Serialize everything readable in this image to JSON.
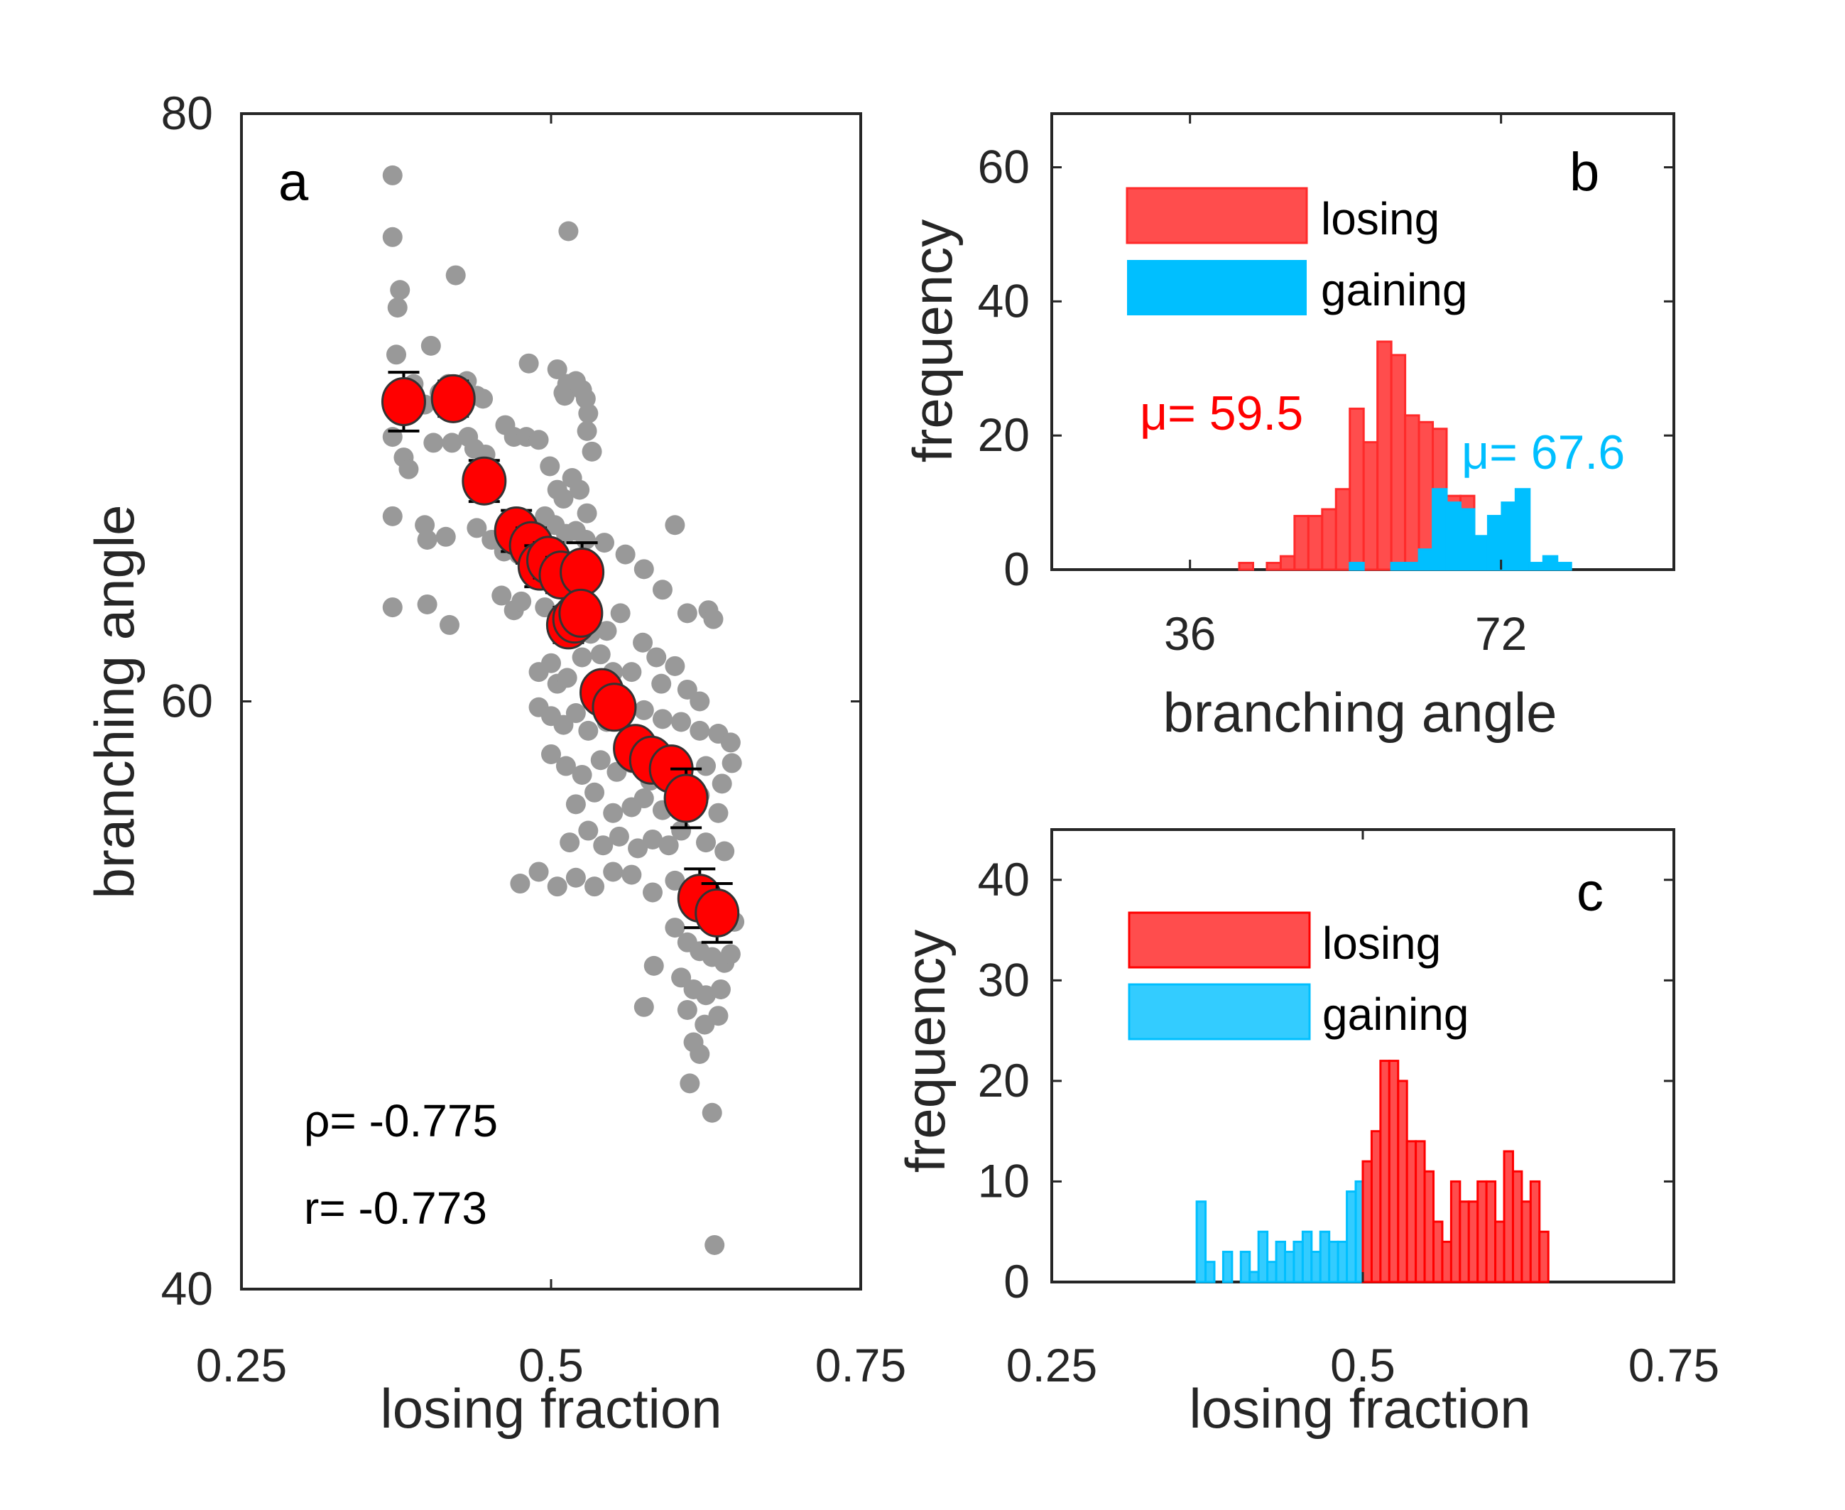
{
  "figure": {
    "colors": {
      "scatter_gray": "#999999",
      "mean_red": "#ff0000",
      "mean_edge": "#333333",
      "losing_red": "#ff4d4d",
      "losing_edge": "#ff2a2a",
      "gaining_blue": "#00bfff",
      "gaining_blue_c": "#33ccff",
      "axis": "#262626"
    }
  },
  "chart_data": [
    {
      "id": "a",
      "type": "scatter",
      "panel_letter": "a",
      "xlabel": "losing fraction",
      "ylabel": "branching angle",
      "xlim": [
        0.25,
        0.75
      ],
      "ylim": [
        40,
        80
      ],
      "xticks": [
        0.25,
        0.5,
        0.75
      ],
      "xtick_labels": [
        "0.25",
        "0.5",
        "0.75"
      ],
      "yticks": [
        40,
        60,
        80
      ],
      "ytick_labels": [
        "40",
        "60",
        "80"
      ],
      "grid": false,
      "annotations": [
        "ρ= -0.775",
        "r= -0.773"
      ],
      "series": [
        {
          "name": "individual",
          "color": "#999999",
          "points": [
            [
              0.372,
              77.9
            ],
            [
              0.372,
              75.8
            ],
            [
              0.378,
              74.0
            ],
            [
              0.376,
              73.4
            ],
            [
              0.375,
              71.8
            ],
            [
              0.403,
              72.1
            ],
            [
              0.423,
              74.5
            ],
            [
              0.514,
              76.0
            ],
            [
              0.482,
              71.5
            ],
            [
              0.51,
              70.5
            ],
            [
              0.389,
              70.8
            ],
            [
              0.398,
              70.1
            ],
            [
              0.41,
              70.5
            ],
            [
              0.417,
              70.8
            ],
            [
              0.432,
              70.9
            ],
            [
              0.44,
              70.4
            ],
            [
              0.445,
              70.3
            ],
            [
              0.505,
              71.3
            ],
            [
              0.511,
              70.4
            ],
            [
              0.513,
              70.8
            ],
            [
              0.52,
              70.9
            ],
            [
              0.525,
              70.6
            ],
            [
              0.528,
              70.3
            ],
            [
              0.53,
              69.8
            ],
            [
              0.529,
              69.2
            ],
            [
              0.372,
              69.0
            ],
            [
              0.381,
              68.3
            ],
            [
              0.385,
              67.9
            ],
            [
              0.405,
              68.8
            ],
            [
              0.42,
              68.8
            ],
            [
              0.433,
              69.0
            ],
            [
              0.438,
              68.6
            ],
            [
              0.447,
              68.4
            ],
            [
              0.452,
              67.9
            ],
            [
              0.463,
              69.4
            ],
            [
              0.47,
              69.0
            ],
            [
              0.48,
              69.0
            ],
            [
              0.49,
              68.9
            ],
            [
              0.499,
              68.0
            ],
            [
              0.505,
              67.2
            ],
            [
              0.51,
              66.9
            ],
            [
              0.517,
              67.6
            ],
            [
              0.523,
              67.2
            ],
            [
              0.529,
              66.4
            ],
            [
              0.533,
              68.5
            ],
            [
              0.372,
              66.3
            ],
            [
              0.398,
              66.0
            ],
            [
              0.4,
              65.5
            ],
            [
              0.415,
              65.6
            ],
            [
              0.44,
              65.9
            ],
            [
              0.452,
              65.5
            ],
            [
              0.462,
              65.1
            ],
            [
              0.474,
              65.0
            ],
            [
              0.482,
              64.6
            ],
            [
              0.495,
              66.3
            ],
            [
              0.503,
              66.0
            ],
            [
              0.512,
              65.7
            ],
            [
              0.52,
              65.8
            ],
            [
              0.528,
              65.5
            ],
            [
              0.543,
              65.4
            ],
            [
              0.56,
              65.0
            ],
            [
              0.6,
              66.0
            ],
            [
              0.372,
              63.2
            ],
            [
              0.4,
              63.3
            ],
            [
              0.418,
              62.6
            ],
            [
              0.46,
              63.6
            ],
            [
              0.47,
              63.1
            ],
            [
              0.476,
              63.4
            ],
            [
              0.495,
              63.2
            ],
            [
              0.505,
              62.5
            ],
            [
              0.515,
              62.8
            ],
            [
              0.532,
              62.3
            ],
            [
              0.545,
              62.4
            ],
            [
              0.556,
              63.0
            ],
            [
              0.575,
              64.5
            ],
            [
              0.59,
              63.8
            ],
            [
              0.61,
              63.0
            ],
            [
              0.627,
              63.1
            ],
            [
              0.631,
              62.8
            ],
            [
              0.49,
              61.0
            ],
            [
              0.5,
              61.3
            ],
            [
              0.505,
              60.6
            ],
            [
              0.513,
              60.8
            ],
            [
              0.525,
              61.5
            ],
            [
              0.54,
              61.6
            ],
            [
              0.55,
              61.0
            ],
            [
              0.565,
              61.0
            ],
            [
              0.574,
              62.0
            ],
            [
              0.585,
              61.5
            ],
            [
              0.589,
              60.6
            ],
            [
              0.6,
              61.2
            ],
            [
              0.61,
              60.4
            ],
            [
              0.62,
              60.0
            ],
            [
              0.49,
              59.8
            ],
            [
              0.5,
              59.5
            ],
            [
              0.51,
              59.2
            ],
            [
              0.52,
              59.6
            ],
            [
              0.53,
              59.0
            ],
            [
              0.545,
              59.3
            ],
            [
              0.56,
              59.6
            ],
            [
              0.575,
              59.7
            ],
            [
              0.59,
              59.4
            ],
            [
              0.605,
              59.3
            ],
            [
              0.62,
              59.0
            ],
            [
              0.635,
              58.9
            ],
            [
              0.645,
              58.6
            ],
            [
              0.5,
              58.2
            ],
            [
              0.512,
              57.8
            ],
            [
              0.525,
              57.5
            ],
            [
              0.54,
              58.0
            ],
            [
              0.553,
              57.6
            ],
            [
              0.565,
              57.9
            ],
            [
              0.58,
              57.3
            ],
            [
              0.592,
              57.8
            ],
            [
              0.608,
              57.1
            ],
            [
              0.625,
              57.8
            ],
            [
              0.638,
              57.2
            ],
            [
              0.646,
              57.9
            ],
            [
              0.52,
              56.5
            ],
            [
              0.535,
              56.9
            ],
            [
              0.55,
              56.2
            ],
            [
              0.565,
              56.4
            ],
            [
              0.575,
              56.7
            ],
            [
              0.59,
              56.3
            ],
            [
              0.62,
              56.8
            ],
            [
              0.635,
              56.2
            ],
            [
              0.515,
              55.2
            ],
            [
              0.53,
              55.6
            ],
            [
              0.542,
              55.1
            ],
            [
              0.555,
              55.4
            ],
            [
              0.57,
              55.0
            ],
            [
              0.582,
              55.3
            ],
            [
              0.595,
              55.1
            ],
            [
              0.605,
              55.6
            ],
            [
              0.625,
              55.2
            ],
            [
              0.64,
              54.9
            ],
            [
              0.475,
              53.8
            ],
            [
              0.49,
              54.2
            ],
            [
              0.505,
              53.7
            ],
            [
              0.52,
              54.0
            ],
            [
              0.535,
              53.7
            ],
            [
              0.55,
              54.2
            ],
            [
              0.565,
              54.1
            ],
            [
              0.582,
              53.5
            ],
            [
              0.6,
              53.9
            ],
            [
              0.615,
              53.4
            ],
            [
              0.64,
              53.1
            ],
            [
              0.648,
              52.5
            ],
            [
              0.6,
              52.3
            ],
            [
              0.61,
              51.8
            ],
            [
              0.62,
              51.5
            ],
            [
              0.63,
              51.3
            ],
            [
              0.64,
              51.1
            ],
            [
              0.645,
              51.4
            ],
            [
              0.583,
              51.0
            ],
            [
              0.605,
              50.6
            ],
            [
              0.615,
              50.2
            ],
            [
              0.625,
              50.0
            ],
            [
              0.637,
              50.2
            ],
            [
              0.575,
              49.6
            ],
            [
              0.61,
              49.5
            ],
            [
              0.624,
              49.0
            ],
            [
              0.635,
              49.3
            ],
            [
              0.615,
              48.4
            ],
            [
              0.62,
              48.0
            ],
            [
              0.612,
              47.0
            ],
            [
              0.63,
              46.0
            ],
            [
              0.632,
              41.5
            ]
          ]
        },
        {
          "name": "binned mean",
          "color": "#ff0000",
          "points": [
            [
              0.381,
              70.2,
              1.0
            ],
            [
              0.421,
              70.3,
              0.6
            ],
            [
              0.446,
              67.5,
              0.7
            ],
            [
              0.472,
              65.8,
              0.7
            ],
            [
              0.484,
              65.3,
              0.6
            ],
            [
              0.491,
              64.6,
              0.7
            ],
            [
              0.498,
              64.8,
              0.6
            ],
            [
              0.508,
              64.3,
              0.6
            ],
            [
              0.525,
              64.4,
              1.0
            ],
            [
              0.514,
              62.6,
              0.6
            ],
            [
              0.519,
              62.8,
              0.5
            ],
            [
              0.524,
              63.0,
              0.5
            ],
            [
              0.541,
              60.3,
              0.5
            ],
            [
              0.551,
              59.8,
              0.5
            ],
            [
              0.568,
              58.4,
              0.5
            ],
            [
              0.581,
              58.0,
              0.5
            ],
            [
              0.597,
              57.7,
              0.5
            ],
            [
              0.609,
              56.7,
              1.0
            ],
            [
              0.62,
              53.3,
              1.0
            ],
            [
              0.634,
              52.8,
              1.0
            ]
          ]
        }
      ]
    },
    {
      "id": "b",
      "type": "bar",
      "subtype": "histogram",
      "panel_letter": "b",
      "xlabel": "branching angle",
      "ylabel": "frequency",
      "xlim": [
        20,
        92
      ],
      "ylim": [
        0,
        68
      ],
      "xticks": [
        36,
        72
      ],
      "xtick_labels": [
        "36",
        "72"
      ],
      "yticks": [
        0,
        20,
        40,
        60
      ],
      "ytick_labels": [
        "0",
        "20",
        "40",
        "60"
      ],
      "grid": false,
      "legend": {
        "placement": "top-left",
        "entries": [
          "losing",
          "gaining"
        ]
      },
      "annotations": [
        {
          "text": "μ= 59.5",
          "series": "losing"
        },
        {
          "text": "μ= 67.6",
          "series": "gaining"
        }
      ],
      "bin_width": 1.6,
      "series": [
        {
          "name": "losing",
          "bin_starts": [
            41.7,
            43.3,
            44.9,
            46.5,
            48.1,
            49.7,
            51.3,
            52.9,
            54.5,
            56.1,
            57.7,
            59.3,
            60.9,
            62.5,
            64.1,
            65.7,
            67.3
          ],
          "values": [
            1,
            0,
            1,
            2,
            8,
            8,
            9,
            12,
            24,
            19,
            34,
            32,
            23,
            22,
            21,
            11,
            11
          ]
        },
        {
          "name": "gaining",
          "bin_starts": [
            54.5,
            56.1,
            57.7,
            59.3,
            60.9,
            62.5,
            64.1,
            65.7,
            67.3,
            68.9,
            70.5,
            72.1,
            73.7,
            75.3,
            76.9
          ],
          "values": [
            1,
            0,
            0,
            1,
            1,
            3,
            12,
            10,
            9,
            5,
            8,
            10,
            12,
            1,
            2
          ]
        },
        {
          "name": "gaining-tail",
          "bin_starts": [
            76.9,
            78.5
          ],
          "values": [
            1,
            1
          ]
        }
      ]
    },
    {
      "id": "c",
      "type": "bar",
      "subtype": "histogram",
      "panel_letter": "c",
      "xlabel": "losing fraction",
      "ylabel": "frequency",
      "xlim": [
        0.25,
        0.75
      ],
      "ylim": [
        0,
        45
      ],
      "xticks": [
        0.25,
        0.5,
        0.75
      ],
      "xtick_labels": [
        "0.25",
        "0.5",
        "0.75"
      ],
      "yticks": [
        0,
        10,
        20,
        30,
        40
      ],
      "ytick_labels": [
        "0",
        "10",
        "20",
        "30",
        "40"
      ],
      "grid": false,
      "legend": {
        "placement": "top-left",
        "entries": [
          "losing",
          "gaining"
        ]
      },
      "bin_width": 0.0071,
      "series": [
        {
          "name": "gaining",
          "bin_starts": [
            0.3665,
            0.3736,
            0.3807,
            0.3878,
            0.3949,
            0.402,
            0.4091,
            0.4162,
            0.4233,
            0.4304,
            0.4375,
            0.4446,
            0.4517,
            0.4588,
            0.4659,
            0.473,
            0.4801,
            0.4872,
            0.4943
          ],
          "values": [
            8,
            2,
            0,
            3,
            0,
            3,
            1,
            5,
            2,
            4,
            3,
            4,
            5,
            3,
            5,
            4,
            4,
            9,
            7
          ]
        },
        {
          "name": "gaining-last",
          "bin_starts": [
            0.4943
          ],
          "values": [
            10
          ]
        },
        {
          "name": "losing",
          "bin_starts": [
            0.5,
            0.5071,
            0.5142,
            0.5213,
            0.5284,
            0.5355,
            0.5426,
            0.5497,
            0.5568,
            0.5639,
            0.571,
            0.5781,
            0.5852,
            0.5923,
            0.5994,
            0.6065,
            0.6136,
            0.6207,
            0.6278,
            0.6349,
            0.642
          ],
          "values": [
            12,
            15,
            22,
            22,
            20,
            14,
            14,
            11,
            6,
            4,
            10,
            8,
            8,
            10,
            10,
            6,
            13,
            11,
            8,
            10,
            5
          ]
        }
      ]
    }
  ]
}
